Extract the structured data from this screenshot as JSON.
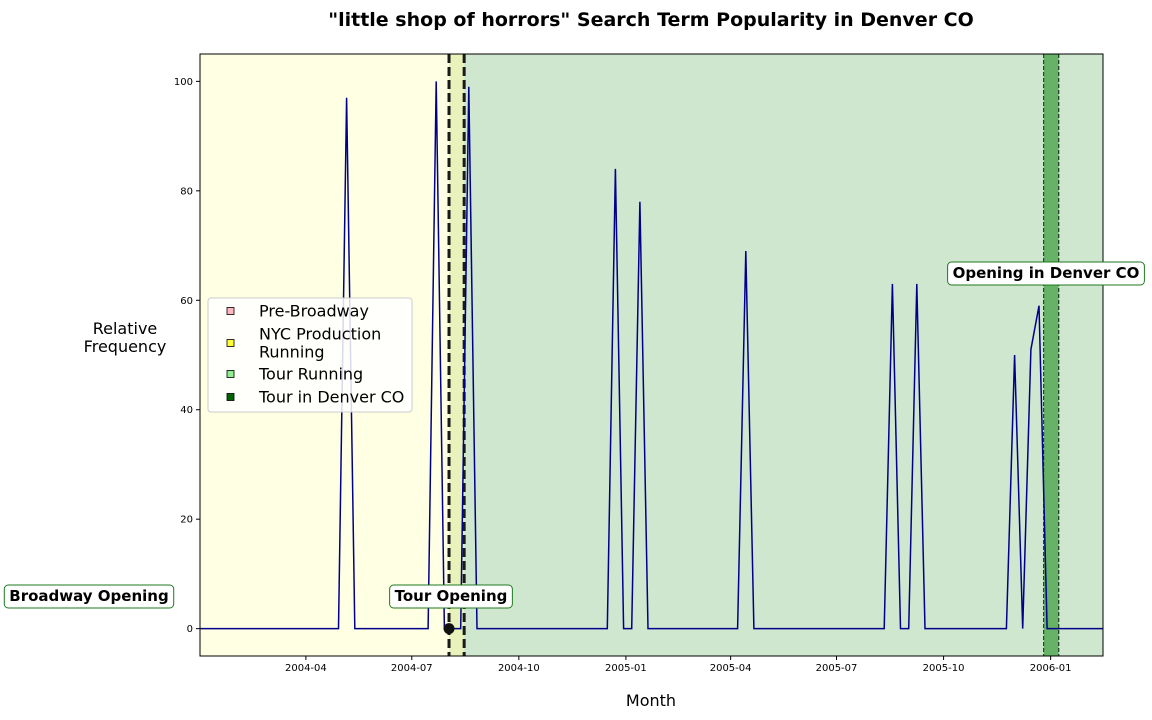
{
  "chart_data": {
    "type": "line",
    "title": "\"little shop of horrors\" Search Term Popularity in Denver CO",
    "xlabel": "Month",
    "ylabel": "Relative\nFrequency",
    "xlim": [
      "2004-01-01",
      "2006-02-15"
    ],
    "ylim": [
      -5,
      105
    ],
    "x_ticks": [
      "2004-04",
      "2004-07",
      "2004-10",
      "2005-01",
      "2005-04",
      "2005-07",
      "2005-10",
      "2006-01"
    ],
    "y_ticks": [
      0,
      20,
      40,
      60,
      80,
      100
    ],
    "grid": false,
    "line_color": "#00008b",
    "series": [
      {
        "x": [
          "2004-01-01",
          "2004-01-08",
          "2004-01-15",
          "2004-01-22",
          "2004-01-29",
          "2004-02-05",
          "2004-02-12",
          "2004-02-19",
          "2004-02-26",
          "2004-03-04",
          "2004-03-11",
          "2004-03-18",
          "2004-03-25",
          "2004-04-01",
          "2004-04-08",
          "2004-04-15",
          "2004-04-22",
          "2004-04-29",
          "2004-05-06",
          "2004-05-13",
          "2004-05-20",
          "2004-05-27",
          "2004-06-03",
          "2004-06-10",
          "2004-06-17",
          "2004-06-24",
          "2004-07-01",
          "2004-07-08",
          "2004-07-15",
          "2004-07-22",
          "2004-07-29",
          "2004-08-05",
          "2004-08-12",
          "2004-08-19",
          "2004-08-26",
          "2004-09-02",
          "2004-09-09",
          "2004-09-16",
          "2004-09-23",
          "2004-09-30",
          "2004-10-07",
          "2004-10-14",
          "2004-10-21",
          "2004-10-28",
          "2004-11-04",
          "2004-11-11",
          "2004-11-18",
          "2004-11-25",
          "2004-12-02",
          "2004-12-09",
          "2004-12-16",
          "2004-12-23",
          "2004-12-30",
          "2005-01-06",
          "2005-01-13",
          "2005-01-20",
          "2005-01-27",
          "2005-02-03",
          "2005-02-10",
          "2005-02-17",
          "2005-02-24",
          "2005-03-03",
          "2005-03-10",
          "2005-03-17",
          "2005-03-24",
          "2005-03-31",
          "2005-04-07",
          "2005-04-14",
          "2005-04-21",
          "2005-04-28",
          "2005-05-05",
          "2005-05-12",
          "2005-05-19",
          "2005-05-26",
          "2005-06-02",
          "2005-06-09",
          "2005-06-16",
          "2005-06-23",
          "2005-06-30",
          "2005-07-07",
          "2005-07-14",
          "2005-07-21",
          "2005-07-28",
          "2005-08-04",
          "2005-08-11",
          "2005-08-18",
          "2005-08-25",
          "2005-09-01",
          "2005-09-08",
          "2005-09-15",
          "2005-09-22",
          "2005-09-29",
          "2005-10-06",
          "2005-10-13",
          "2005-10-20",
          "2005-10-27",
          "2005-11-03",
          "2005-11-10",
          "2005-11-17",
          "2005-11-24",
          "2005-12-01",
          "2005-12-08",
          "2005-12-15",
          "2005-12-22",
          "2005-12-29",
          "2006-01-05",
          "2006-01-12",
          "2006-01-19",
          "2006-01-26",
          "2006-02-02",
          "2006-02-09",
          "2006-02-15"
        ],
        "y": [
          0,
          0,
          0,
          0,
          0,
          0,
          0,
          0,
          0,
          0,
          0,
          0,
          0,
          0,
          0,
          0,
          0,
          0,
          97,
          0,
          0,
          0,
          0,
          0,
          0,
          0,
          0,
          0,
          0,
          100,
          0,
          0,
          0,
          99,
          0,
          0,
          0,
          0,
          0,
          0,
          0,
          0,
          0,
          0,
          0,
          0,
          0,
          0,
          0,
          0,
          0,
          84,
          0,
          0,
          78,
          0,
          0,
          0,
          0,
          0,
          0,
          0,
          0,
          0,
          0,
          0,
          0,
          69,
          0,
          0,
          0,
          0,
          0,
          0,
          0,
          0,
          0,
          0,
          0,
          0,
          0,
          0,
          0,
          0,
          0,
          63,
          0,
          0,
          63,
          0,
          0,
          0,
          0,
          0,
          0,
          0,
          0,
          0,
          0,
          0,
          50,
          0,
          51,
          59,
          0,
          0,
          0,
          0,
          0,
          0,
          0,
          0
        ]
      }
    ],
    "periods": [
      {
        "name": "NYC Production Running",
        "start": "2004-01-01",
        "end": "2004-08-10",
        "color": "#ffffe3"
      },
      {
        "name": "Tour Running",
        "start": "2004-08-10",
        "end": "2005-12-26",
        "color": "#cfe6cf"
      },
      {
        "name": "Tour in Denver CO",
        "start": "2005-12-26",
        "end": "2006-01-08",
        "color": "#66b266"
      },
      {
        "name": "Tour Running",
        "start": "2006-01-08",
        "end": "2006-02-15",
        "color": "#cfe6cf"
      }
    ],
    "overlap_band": {
      "start": "2004-08-02",
      "end": "2004-08-15",
      "color": "#e8f2ba"
    },
    "vlines": [
      {
        "date": "2004-08-02",
        "style": "thick-dashed"
      },
      {
        "date": "2004-08-15",
        "style": "thick-dashed"
      },
      {
        "date": "2005-12-26",
        "style": "thin-dashed"
      },
      {
        "date": "2006-01-08",
        "style": "thin-dashed"
      }
    ],
    "marker": {
      "x": "2004-08-02",
      "y": 0
    },
    "annotations": [
      {
        "text": "Broadway Opening",
        "x": "2004-08-02",
        "y": 0
      },
      {
        "text": "Tour Opening",
        "x": "2004-08-02",
        "y": 0
      },
      {
        "text": "Opening in Denver CO",
        "x": "2005-12-26",
        "y": 60
      }
    ],
    "legend": {
      "placement": "center-left",
      "entries": [
        {
          "label": "Pre-Broadway",
          "color": "#ffb6c1"
        },
        {
          "label": "NYC Production\nRunning",
          "color": "#ffff33"
        },
        {
          "label": "Tour Running",
          "color": "#90ee90"
        },
        {
          "label": "Tour in Denver CO",
          "color": "#006400"
        }
      ]
    }
  }
}
